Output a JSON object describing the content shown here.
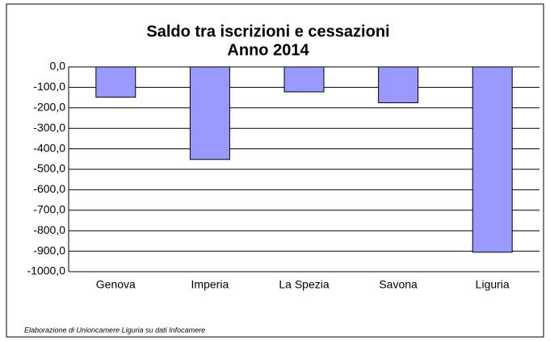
{
  "chart_data": {
    "type": "bar",
    "title": "Saldo  tra iscrizioni e cessazioni",
    "subtitle": "Anno 2014",
    "note": "Elaborazione di Unioncamere Liguria su dati Infocamere",
    "categories": [
      "Genova",
      "Imperia",
      "La Spezia",
      "Savona",
      "Liguria"
    ],
    "values": [
      -148,
      -452,
      -122,
      -175,
      -905
    ],
    "color": "#9999ff",
    "ylim": [
      -1000,
      0
    ],
    "yticks": [
      {
        "value": 0,
        "label": "0,0"
      },
      {
        "value": -100,
        "label": "-100,0"
      },
      {
        "value": -200,
        "label": "-200,0"
      },
      {
        "value": -300,
        "label": "-300,0"
      },
      {
        "value": -400,
        "label": "-400,0"
      },
      {
        "value": -500,
        "label": "-500,0"
      },
      {
        "value": -600,
        "label": "-600,0"
      },
      {
        "value": -700,
        "label": "-700,0"
      },
      {
        "value": -800,
        "label": "-800,0"
      },
      {
        "value": -900,
        "label": "-900,0"
      },
      {
        "value": -1000,
        "label": "-1000,0"
      }
    ],
    "grid": true
  }
}
